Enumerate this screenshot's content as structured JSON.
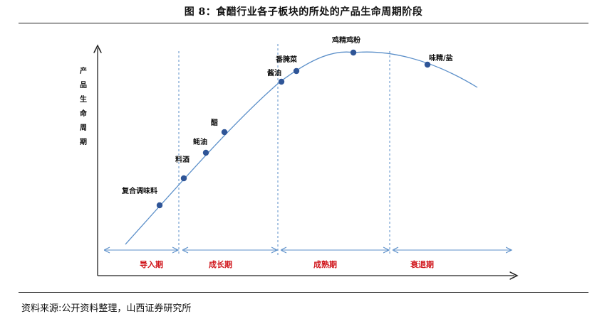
{
  "title": "图 8：食醋行业各子板块的所处的产品生命周期阶段",
  "source": "资料来源:公开资料整理，山西证券研究所",
  "y_axis_label": [
    "产",
    "品",
    "生",
    "命",
    "周",
    "期"
  ],
  "phases": [
    "导入期",
    "成长期",
    "成熟期",
    "衰退期"
  ],
  "products": [
    {
      "name": "复合调味料",
      "phase": "导入期"
    },
    {
      "name": "料酒",
      "phase": "成长期"
    },
    {
      "name": "蚝油",
      "phase": "成长期"
    },
    {
      "name": "醋",
      "phase": "成长期"
    },
    {
      "name": "酱油",
      "phase": "成熟期"
    },
    {
      "name": "番腌菜",
      "phase": "成熟期"
    },
    {
      "name": "鸡精鸡粉",
      "phase": "成熟期"
    },
    {
      "name": "味精/盐",
      "phase": "衰退期"
    }
  ],
  "colors": {
    "curve": "#5b8fc9",
    "dot": "#2f5597",
    "phase_text": "#d0141a",
    "arrow": "#5b8fc9"
  }
}
